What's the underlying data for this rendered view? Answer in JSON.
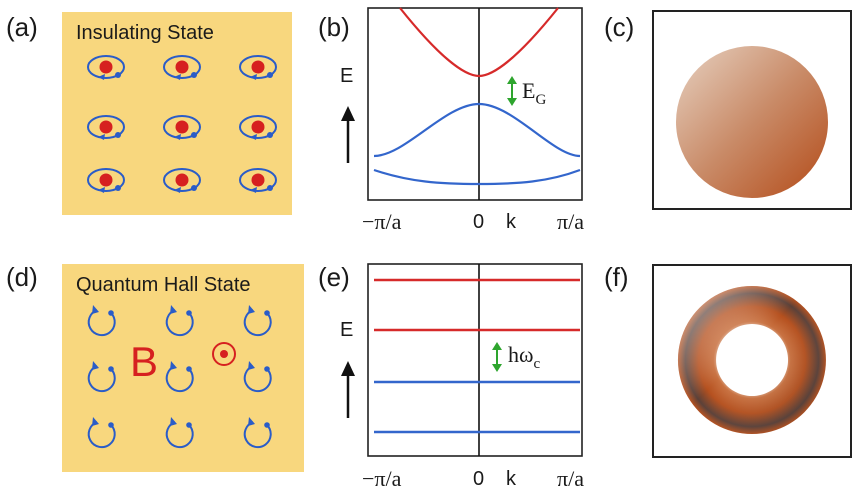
{
  "panels": {
    "a": {
      "label": "(a)",
      "title": "Insulating State"
    },
    "b": {
      "label": "(b)",
      "y_axis": "E",
      "gap_main": "E",
      "gap_sub": "G",
      "ticks": {
        "left": "−π/a",
        "center": "0",
        "k": "k",
        "right": "π/a"
      }
    },
    "c": {
      "label": "(c)"
    },
    "d": {
      "label": "(d)",
      "title": "Quantum Hall State",
      "field_label": "B"
    },
    "e": {
      "label": "(e)",
      "y_axis": "E",
      "gap_main": "hω",
      "gap_sub": "c",
      "ticks": {
        "left": "−π/a",
        "center": "0",
        "k": "k",
        "right": "π/a"
      }
    },
    "f": {
      "label": "(f)"
    }
  },
  "colors": {
    "panel_bg": "#f8d77e",
    "electron": "#d62020",
    "orbit": "#2a5cc8",
    "conduction_band": "#d62a2a",
    "valence_band": "#3366cc",
    "gap_arrow": "#2ea52e",
    "surface_light": "#e3c8b4",
    "surface_dark": "#b5501e"
  },
  "icons": {
    "electron_orbit": "electron-orbit-icon",
    "cyclotron_orbit": "cyclotron-orbit-icon",
    "field_out_of_page": "field-dot-icon",
    "sphere": "sphere-icon",
    "torus": "torus-icon"
  }
}
